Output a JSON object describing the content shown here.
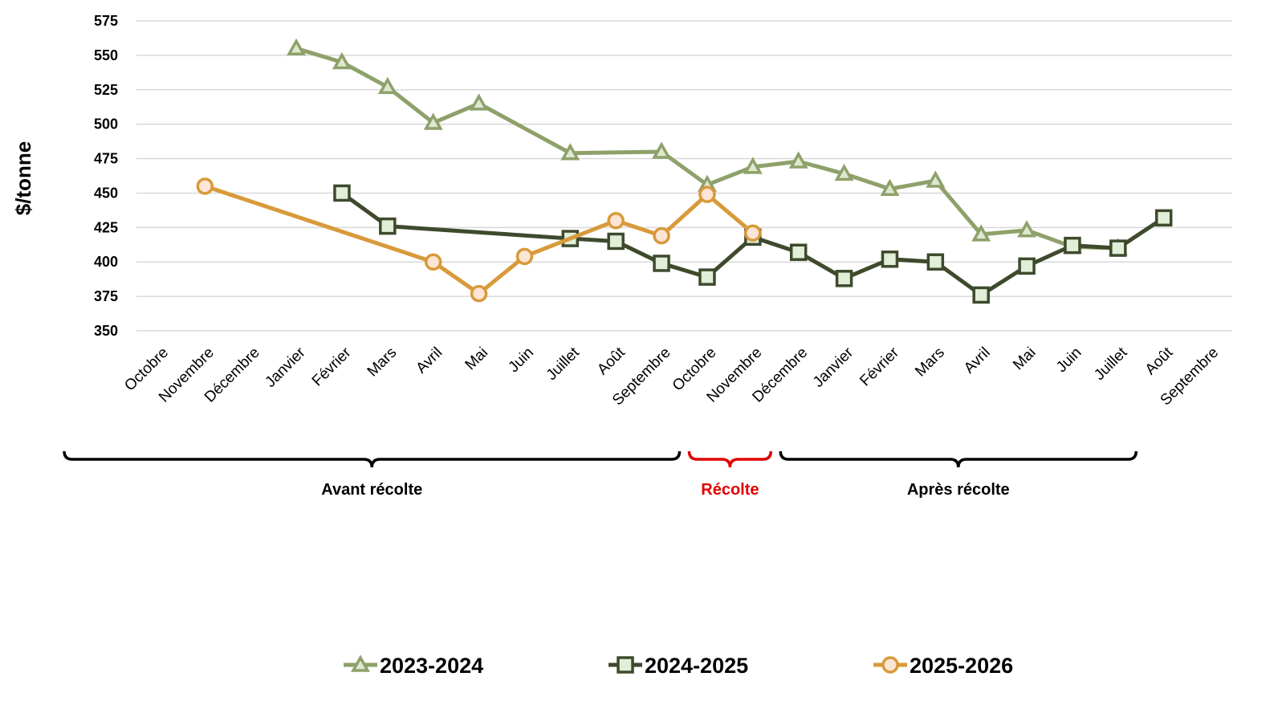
{
  "chart_data": {
    "type": "line",
    "ylabel": "$/tonne",
    "xlabel": "",
    "ylim": [
      350,
      575
    ],
    "yticks": [
      350,
      375,
      400,
      425,
      450,
      475,
      500,
      525,
      550,
      575
    ],
    "grid": true,
    "legend_position": "bottom",
    "categories": [
      "Octobre",
      "Novembre",
      "Décembre",
      "Janvier",
      "Février",
      "Mars",
      "Avril",
      "Mai",
      "Juin",
      "Juillet",
      "Août",
      "Septembre",
      "Octobre",
      "Novembre",
      "Décembre",
      "Janvier",
      "Février",
      "Mars",
      "Avril",
      "Mai",
      "Juin",
      "Juillet",
      "Août",
      "Septembre"
    ],
    "series": [
      {
        "name": "2023-2024",
        "color": "#8ea16a",
        "marker": "triangle",
        "values": [
          null,
          null,
          null,
          555,
          545,
          527,
          501,
          515,
          null,
          479,
          null,
          480,
          456,
          469,
          473,
          464,
          453,
          459,
          420,
          423,
          411,
          410,
          null,
          null
        ]
      },
      {
        "name": "2024-2025",
        "color": "#3e4a2c",
        "marker": "square",
        "values": [
          null,
          null,
          null,
          null,
          450,
          426,
          null,
          null,
          null,
          417,
          415,
          399,
          389,
          418,
          407,
          388,
          402,
          400,
          376,
          397,
          412,
          410,
          432,
          null
        ]
      },
      {
        "name": "2025-2026",
        "color": "#d89a3a",
        "marker": "circle",
        "values": [
          null,
          455,
          null,
          null,
          null,
          null,
          400,
          377,
          404,
          null,
          430,
          419,
          449,
          421,
          null,
          null,
          null,
          null,
          null,
          null,
          null,
          null,
          null,
          null
        ]
      }
    ],
    "phases": [
      {
        "label": "Avant récolte",
        "from": 0,
        "to": 12,
        "color": "#000000"
      },
      {
        "label": "Récolte",
        "from": 12,
        "to": 14,
        "color": "#e00000"
      },
      {
        "label": "Après récolte",
        "from": 14,
        "to": 22,
        "color": "#000000"
      }
    ]
  }
}
